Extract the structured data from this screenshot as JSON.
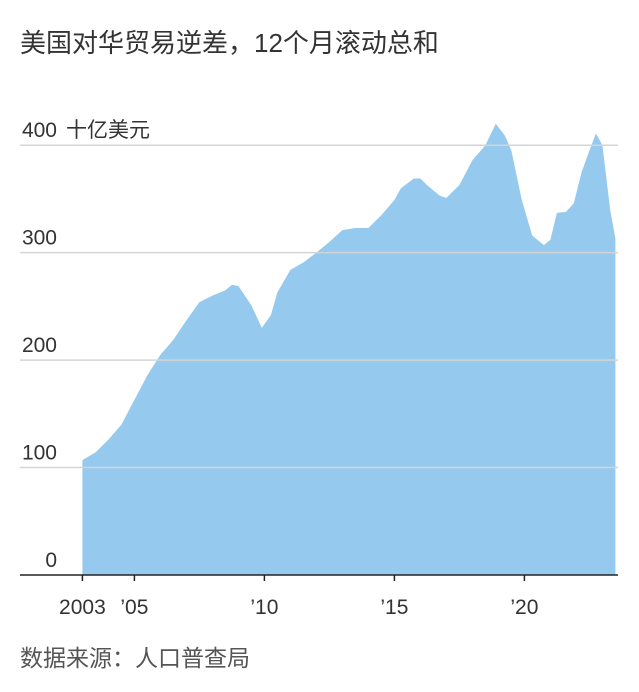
{
  "chart_data": {
    "type": "area",
    "title": "美国对华贸易逆差，12个月滚动总和",
    "y_unit": "十亿美元",
    "source": "数据来源：人口普查局",
    "color": "#95caee",
    "grid": true,
    "x": [
      2003.0,
      2003.5,
      2004.0,
      2004.5,
      2005.0,
      2005.5,
      2006.0,
      2006.5,
      2007.0,
      2007.5,
      2008.0,
      2008.5,
      2008.75,
      2009.0,
      2009.5,
      2009.9,
      2010.25,
      2010.5,
      2011.0,
      2011.5,
      2012.0,
      2012.5,
      2013.0,
      2013.5,
      2014.0,
      2014.5,
      2015.0,
      2015.25,
      2015.75,
      2016.0,
      2016.25,
      2016.75,
      2017.0,
      2017.5,
      2018.0,
      2018.5,
      2018.9,
      2019.25,
      2019.5,
      2019.9,
      2020.3,
      2020.75,
      2021.0,
      2021.25,
      2021.6,
      2021.9,
      2022.2,
      2022.5,
      2022.75,
      2023.0,
      2023.3,
      2023.5
    ],
    "values": [
      107,
      114,
      126,
      140,
      163,
      186,
      205,
      219,
      237,
      254,
      260,
      265,
      270,
      269,
      251,
      230,
      242,
      263,
      284,
      291,
      300,
      310,
      321,
      323,
      323,
      335,
      349,
      360,
      369,
      369,
      363,
      353,
      351,
      363,
      386,
      400,
      420,
      409,
      395,
      349,
      316,
      307,
      312,
      337,
      338,
      346,
      375,
      395,
      411,
      400,
      340,
      313
    ],
    "xlim": [
      2000.6,
      2023.6
    ],
    "ylim": [
      0,
      430
    ],
    "xticks": [
      {
        "value": 2003,
        "label": "2003"
      },
      {
        "value": 2005,
        "label": "’05"
      },
      {
        "value": 2010,
        "label": "’10"
      },
      {
        "value": 2015,
        "label": "’15"
      },
      {
        "value": 2020,
        "label": "’20"
      }
    ],
    "yticks": [
      0,
      100,
      200,
      300,
      400
    ]
  }
}
